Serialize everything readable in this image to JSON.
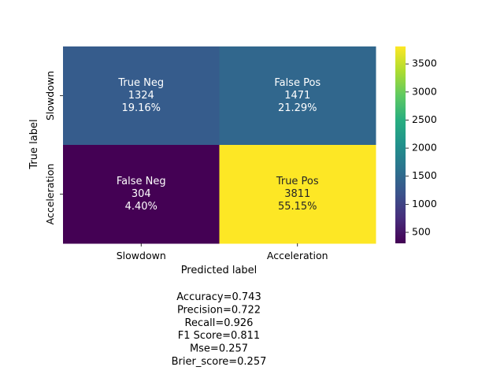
{
  "chart_data": {
    "type": "heatmap",
    "title": "",
    "xlabel": "Predicted label",
    "ylabel": "True label",
    "x_categories": [
      "Slowdown",
      "Acceleration"
    ],
    "y_categories": [
      "Slowdown",
      "Acceleration"
    ],
    "cells": [
      [
        {
          "name": "True Neg",
          "count": 1324,
          "percent": "19.16%"
        },
        {
          "name": "False Pos",
          "count": 1471,
          "percent": "21.29%"
        }
      ],
      [
        {
          "name": "False Neg",
          "count": 304,
          "percent": "4.40%"
        },
        {
          "name": "True Pos",
          "count": 3811,
          "percent": "55.15%"
        }
      ]
    ],
    "colormap": "viridis",
    "colorbar": {
      "vmin": 304,
      "vmax": 3811,
      "ticks": [
        500,
        1000,
        1500,
        2000,
        2500,
        3000,
        3500
      ]
    },
    "metrics": [
      "Accuracy=0.743",
      "Precision=0.722",
      "Recall=0.926",
      "F1 Score=0.811",
      "Mse=0.257",
      "Brier_score=0.257"
    ]
  }
}
